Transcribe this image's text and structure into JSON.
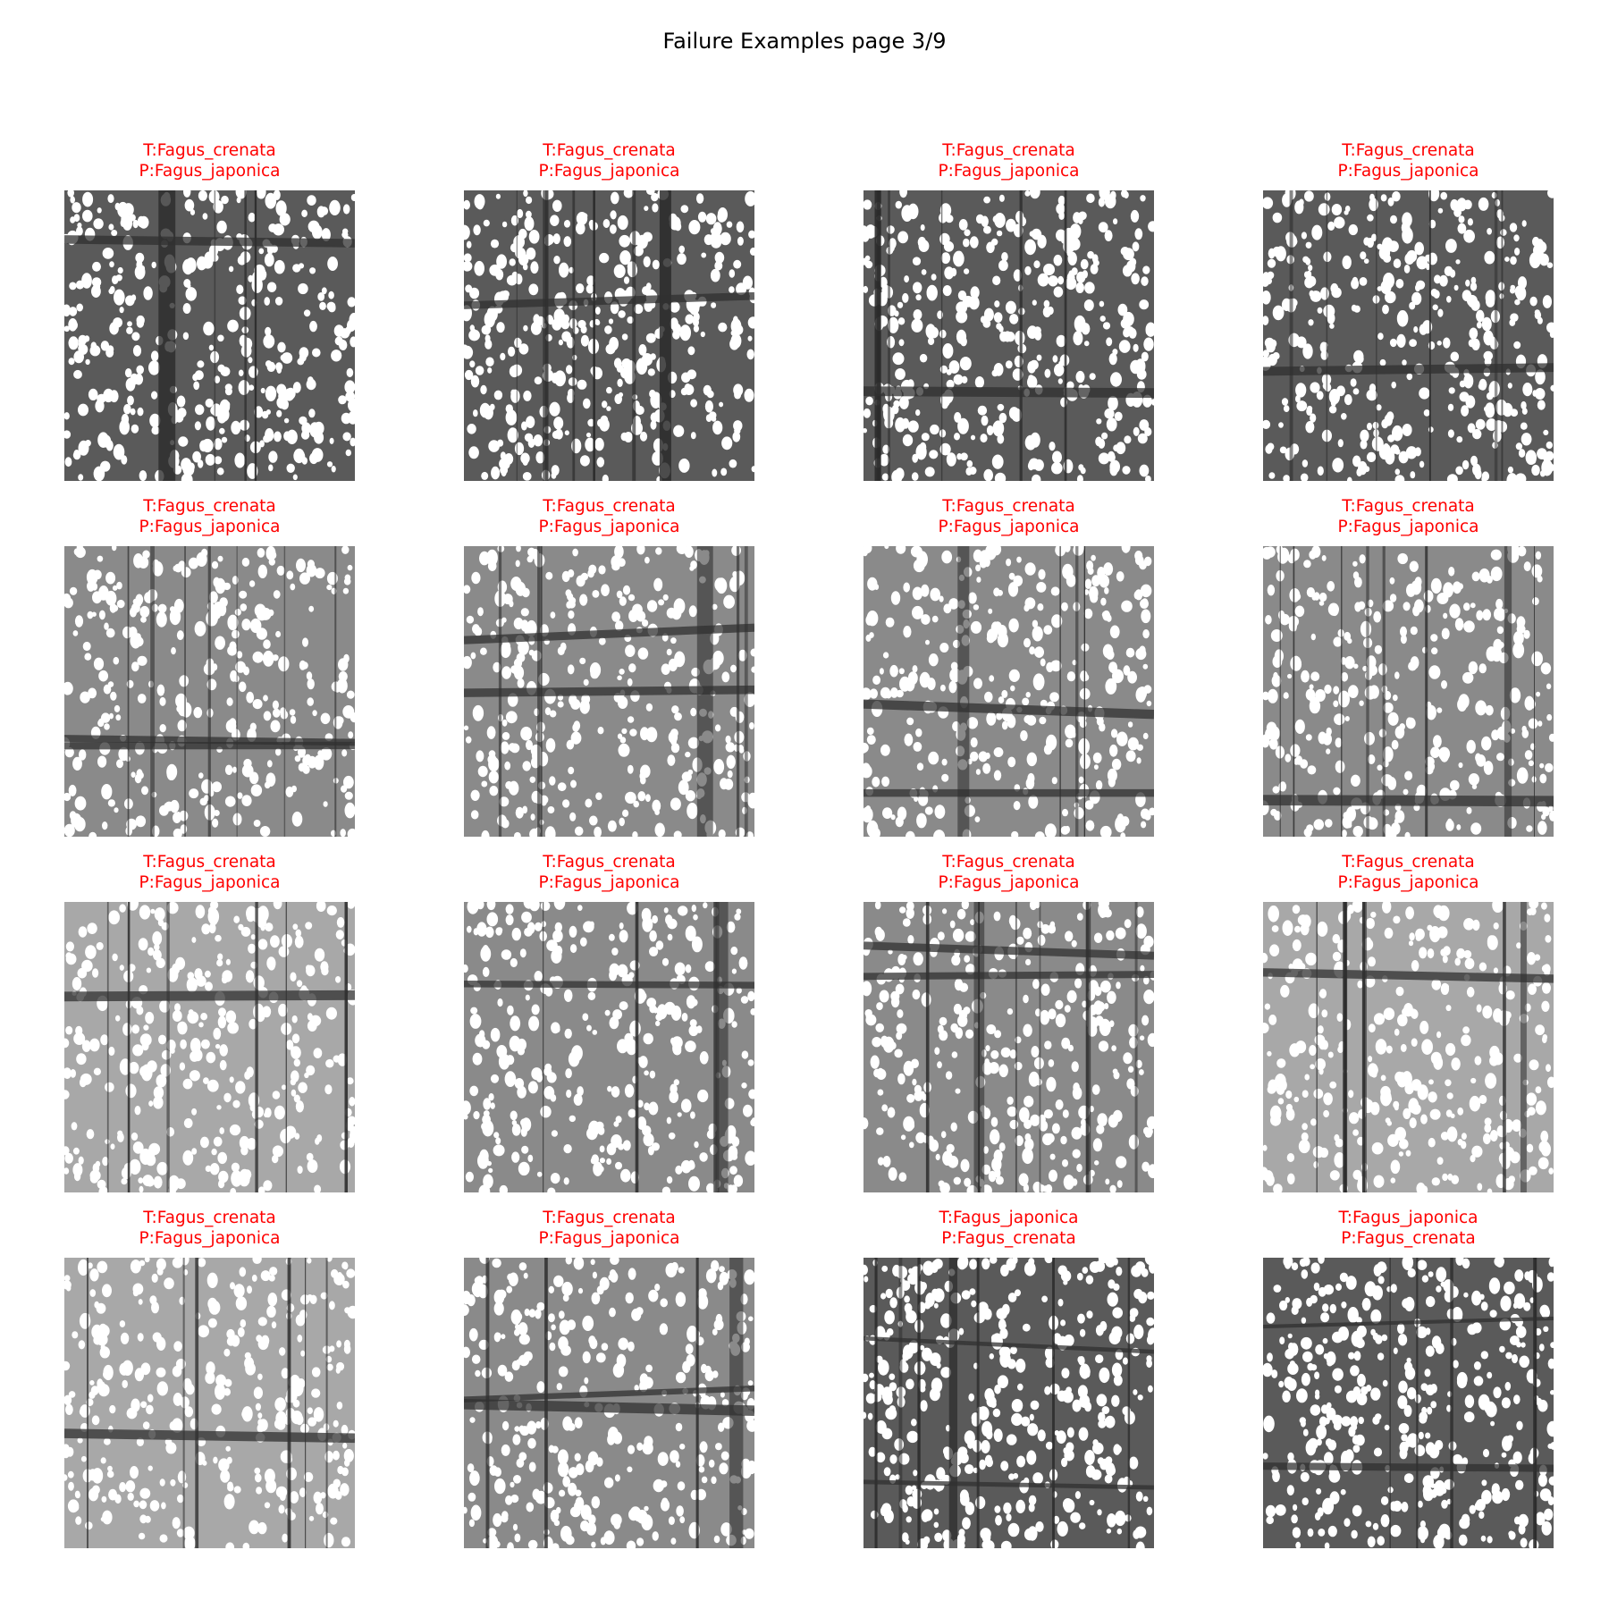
{
  "figure": {
    "title": "Failure Examples page 3/9"
  },
  "samples": [
    {
      "true_label": "T:Fagus_crenata",
      "pred_label": "P:Fagus_japonica",
      "tone": "dark"
    },
    {
      "true_label": "T:Fagus_crenata",
      "pred_label": "P:Fagus_japonica",
      "tone": "dark"
    },
    {
      "true_label": "T:Fagus_crenata",
      "pred_label": "P:Fagus_japonica",
      "tone": "dark"
    },
    {
      "true_label": "T:Fagus_crenata",
      "pred_label": "P:Fagus_japonica",
      "tone": "dark"
    },
    {
      "true_label": "T:Fagus_crenata",
      "pred_label": "P:Fagus_japonica",
      "tone": "mid"
    },
    {
      "true_label": "T:Fagus_crenata",
      "pred_label": "P:Fagus_japonica",
      "tone": "mid"
    },
    {
      "true_label": "T:Fagus_crenata",
      "pred_label": "P:Fagus_japonica",
      "tone": "mid"
    },
    {
      "true_label": "T:Fagus_crenata",
      "pred_label": "P:Fagus_japonica",
      "tone": "mid"
    },
    {
      "true_label": "T:Fagus_crenata",
      "pred_label": "P:Fagus_japonica",
      "tone": "light"
    },
    {
      "true_label": "T:Fagus_crenata",
      "pred_label": "P:Fagus_japonica",
      "tone": "mid"
    },
    {
      "true_label": "T:Fagus_crenata",
      "pred_label": "P:Fagus_japonica",
      "tone": "mid"
    },
    {
      "true_label": "T:Fagus_crenata",
      "pred_label": "P:Fagus_japonica",
      "tone": "light"
    },
    {
      "true_label": "T:Fagus_crenata",
      "pred_label": "P:Fagus_japonica",
      "tone": "light"
    },
    {
      "true_label": "T:Fagus_crenata",
      "pred_label": "P:Fagus_japonica",
      "tone": "mid"
    },
    {
      "true_label": "T:Fagus_japonica",
      "pred_label": "P:Fagus_crenata",
      "tone": "dark"
    },
    {
      "true_label": "T:Fagus_japonica",
      "pred_label": "P:Fagus_crenata",
      "tone": "dark"
    }
  ],
  "colors": {
    "caption": "#ff0000",
    "background": "#ffffff"
  }
}
